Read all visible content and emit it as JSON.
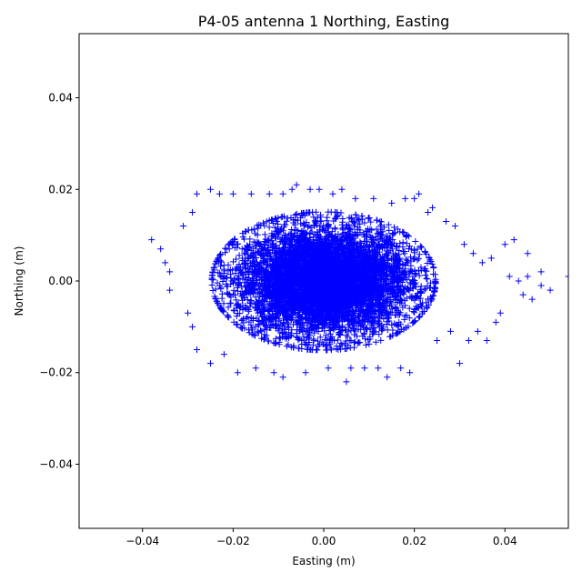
{
  "chart_data": {
    "type": "scatter",
    "title": "P4-05 antenna 1 Northing, Easting",
    "xlabel": "Easting (m)",
    "ylabel": "Northing (m)",
    "xlim": [
      -0.054,
      0.054
    ],
    "ylim": [
      -0.054,
      0.054
    ],
    "xticks": [
      -0.04,
      -0.02,
      0.0,
      0.02,
      0.04
    ],
    "yticks": [
      -0.04,
      -0.02,
      0.0,
      0.02,
      0.04
    ],
    "xtick_labels": [
      "−0.04",
      "−0.02",
      "0.00",
      "0.02",
      "0.04"
    ],
    "ytick_labels": [
      "−0.04",
      "−0.02",
      "0.00",
      "0.02",
      "0.04"
    ],
    "marker": "+",
    "color": "#0000ff",
    "grid": false,
    "series": [
      {
        "cluster": {
          "center": [
            0.0,
            0.0
          ],
          "std_x": 0.0095,
          "std_y": 0.0058
        },
        "points": [
          [
            -0.038,
            0.009
          ],
          [
            -0.036,
            0.007
          ],
          [
            -0.035,
            0.004
          ],
          [
            -0.034,
            0.002
          ],
          [
            -0.034,
            -0.002
          ],
          [
            -0.031,
            0.012
          ],
          [
            -0.03,
            -0.007
          ],
          [
            -0.029,
            0.015
          ],
          [
            -0.029,
            -0.01
          ],
          [
            -0.028,
            -0.015
          ],
          [
            -0.028,
            0.019
          ],
          [
            -0.025,
            0.02
          ],
          [
            -0.025,
            -0.018
          ],
          [
            -0.023,
            0.019
          ],
          [
            -0.022,
            -0.016
          ],
          [
            -0.02,
            0.019
          ],
          [
            -0.019,
            -0.02
          ],
          [
            -0.016,
            0.019
          ],
          [
            -0.015,
            -0.019
          ],
          [
            -0.012,
            0.019
          ],
          [
            -0.011,
            -0.02
          ],
          [
            -0.009,
            0.019
          ],
          [
            -0.009,
            -0.021
          ],
          [
            -0.007,
            0.02
          ],
          [
            -0.006,
            0.021
          ],
          [
            -0.004,
            -0.02
          ],
          [
            -0.003,
            0.02
          ],
          [
            -0.001,
            0.02
          ],
          [
            0.001,
            -0.019
          ],
          [
            0.002,
            0.019
          ],
          [
            0.004,
            0.02
          ],
          [
            0.005,
            -0.022
          ],
          [
            0.006,
            -0.019
          ],
          [
            0.007,
            0.018
          ],
          [
            0.009,
            -0.019
          ],
          [
            0.011,
            0.018
          ],
          [
            0.012,
            -0.019
          ],
          [
            0.014,
            -0.021
          ],
          [
            0.015,
            0.017
          ],
          [
            0.017,
            -0.019
          ],
          [
            0.018,
            0.018
          ],
          [
            0.019,
            -0.02
          ],
          [
            0.02,
            0.018
          ],
          [
            0.021,
            0.019
          ],
          [
            0.023,
            0.015
          ],
          [
            0.024,
            0.016
          ],
          [
            0.025,
            -0.013
          ],
          [
            0.027,
            0.013
          ],
          [
            0.028,
            -0.011
          ],
          [
            0.029,
            0.012
          ],
          [
            0.03,
            -0.018
          ],
          [
            0.031,
            0.008
          ],
          [
            0.032,
            -0.013
          ],
          [
            0.033,
            0.006
          ],
          [
            0.034,
            -0.011
          ],
          [
            0.035,
            0.004
          ],
          [
            0.036,
            -0.013
          ],
          [
            0.037,
            0.005
          ],
          [
            0.038,
            -0.009
          ],
          [
            0.039,
            -0.007
          ],
          [
            0.04,
            0.008
          ],
          [
            0.041,
            0.001
          ],
          [
            0.042,
            0.009
          ],
          [
            0.043,
            0.0
          ],
          [
            0.044,
            -0.003
          ],
          [
            0.045,
            0.006
          ],
          [
            0.045,
            0.001
          ],
          [
            0.046,
            -0.004
          ],
          [
            0.048,
            0.002
          ],
          [
            0.048,
            -0.001
          ],
          [
            0.05,
            -0.002
          ],
          [
            0.054,
            0.001
          ]
        ]
      }
    ]
  }
}
